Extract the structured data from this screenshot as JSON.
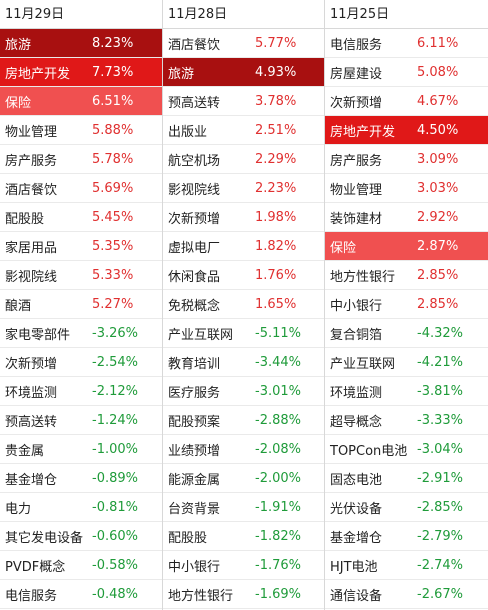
{
  "columns": [
    {
      "date": "11月29日",
      "rows": [
        {
          "name": "旅游",
          "pct": "8.23%",
          "dir": "up",
          "hl": "hl-dark"
        },
        {
          "name": "房地产开发",
          "pct": "7.73%",
          "dir": "up",
          "hl": "hl-red"
        },
        {
          "name": "保险",
          "pct": "6.51%",
          "dir": "up",
          "hl": "hl-pink"
        },
        {
          "name": "物业管理",
          "pct": "5.88%",
          "dir": "up",
          "hl": ""
        },
        {
          "name": "房产服务",
          "pct": "5.78%",
          "dir": "up",
          "hl": ""
        },
        {
          "name": "酒店餐饮",
          "pct": "5.69%",
          "dir": "up",
          "hl": ""
        },
        {
          "name": "配股股",
          "pct": "5.45%",
          "dir": "up",
          "hl": ""
        },
        {
          "name": "家居用品",
          "pct": "5.35%",
          "dir": "up",
          "hl": ""
        },
        {
          "name": "影视院线",
          "pct": "5.33%",
          "dir": "up",
          "hl": ""
        },
        {
          "name": "酿酒",
          "pct": "5.27%",
          "dir": "up",
          "hl": ""
        },
        {
          "name": "家电零部件",
          "pct": "-3.26%",
          "dir": "down",
          "hl": ""
        },
        {
          "name": "次新预增",
          "pct": "-2.54%",
          "dir": "down",
          "hl": ""
        },
        {
          "name": "环境监测",
          "pct": "-2.12%",
          "dir": "down",
          "hl": ""
        },
        {
          "name": "预高送转",
          "pct": "-1.24%",
          "dir": "down",
          "hl": ""
        },
        {
          "name": "贵金属",
          "pct": "-1.00%",
          "dir": "down",
          "hl": ""
        },
        {
          "name": "基金增仓",
          "pct": "-0.89%",
          "dir": "down",
          "hl": ""
        },
        {
          "name": "电力",
          "pct": "-0.81%",
          "dir": "down",
          "hl": ""
        },
        {
          "name": "其它发电设备",
          "pct": "-0.60%",
          "dir": "down",
          "hl": ""
        },
        {
          "name": "PVDF概念",
          "pct": "-0.58%",
          "dir": "down",
          "hl": ""
        },
        {
          "name": "电信服务",
          "pct": "-0.48%",
          "dir": "down",
          "hl": ""
        }
      ]
    },
    {
      "date": "11月28日",
      "rows": [
        {
          "name": "酒店餐饮",
          "pct": "5.77%",
          "dir": "up",
          "hl": ""
        },
        {
          "name": "旅游",
          "pct": "4.93%",
          "dir": "up",
          "hl": "hl-dark"
        },
        {
          "name": "预高送转",
          "pct": "3.78%",
          "dir": "up",
          "hl": ""
        },
        {
          "name": "出版业",
          "pct": "2.51%",
          "dir": "up",
          "hl": ""
        },
        {
          "name": "航空机场",
          "pct": "2.29%",
          "dir": "up",
          "hl": ""
        },
        {
          "name": "影视院线",
          "pct": "2.23%",
          "dir": "up",
          "hl": ""
        },
        {
          "name": "次新预增",
          "pct": "1.98%",
          "dir": "up",
          "hl": ""
        },
        {
          "name": "虚拟电厂",
          "pct": "1.82%",
          "dir": "up",
          "hl": ""
        },
        {
          "name": "休闲食品",
          "pct": "1.76%",
          "dir": "up",
          "hl": ""
        },
        {
          "name": "免税概念",
          "pct": "1.65%",
          "dir": "up",
          "hl": ""
        },
        {
          "name": "产业互联网",
          "pct": "-5.11%",
          "dir": "down",
          "hl": ""
        },
        {
          "name": "教育培训",
          "pct": "-3.44%",
          "dir": "down",
          "hl": ""
        },
        {
          "name": "医疗服务",
          "pct": "-3.01%",
          "dir": "down",
          "hl": ""
        },
        {
          "name": "配股预案",
          "pct": "-2.88%",
          "dir": "down",
          "hl": ""
        },
        {
          "name": "业绩预增",
          "pct": "-2.08%",
          "dir": "down",
          "hl": ""
        },
        {
          "name": "能源金属",
          "pct": "-2.00%",
          "dir": "down",
          "hl": ""
        },
        {
          "name": "台资背景",
          "pct": "-1.91%",
          "dir": "down",
          "hl": ""
        },
        {
          "name": "配股股",
          "pct": "-1.82%",
          "dir": "down",
          "hl": ""
        },
        {
          "name": "中小银行",
          "pct": "-1.76%",
          "dir": "down",
          "hl": ""
        },
        {
          "name": "地方性银行",
          "pct": "-1.69%",
          "dir": "down",
          "hl": ""
        }
      ]
    },
    {
      "date": "11月25日",
      "rows": [
        {
          "name": "电信服务",
          "pct": "6.11%",
          "dir": "up",
          "hl": ""
        },
        {
          "name": "房屋建设",
          "pct": "5.08%",
          "dir": "up",
          "hl": ""
        },
        {
          "name": "次新预增",
          "pct": "4.67%",
          "dir": "up",
          "hl": ""
        },
        {
          "name": "房地产开发",
          "pct": "4.50%",
          "dir": "up",
          "hl": "hl-red"
        },
        {
          "name": "房产服务",
          "pct": "3.09%",
          "dir": "up",
          "hl": ""
        },
        {
          "name": "物业管理",
          "pct": "3.03%",
          "dir": "up",
          "hl": ""
        },
        {
          "name": "装饰建材",
          "pct": "2.92%",
          "dir": "up",
          "hl": ""
        },
        {
          "name": "保险",
          "pct": "2.87%",
          "dir": "up",
          "hl": "hl-pink"
        },
        {
          "name": "地方性银行",
          "pct": "2.85%",
          "dir": "up",
          "hl": ""
        },
        {
          "name": "中小银行",
          "pct": "2.85%",
          "dir": "up",
          "hl": ""
        },
        {
          "name": "复合铜箔",
          "pct": "-4.32%",
          "dir": "down",
          "hl": ""
        },
        {
          "name": "产业互联网",
          "pct": "-4.21%",
          "dir": "down",
          "hl": ""
        },
        {
          "name": "环境监测",
          "pct": "-3.81%",
          "dir": "down",
          "hl": ""
        },
        {
          "name": "超导概念",
          "pct": "-3.33%",
          "dir": "down",
          "hl": ""
        },
        {
          "name": "TOPCon电池",
          "pct": "-3.04%",
          "dir": "down",
          "hl": ""
        },
        {
          "name": "固态电池",
          "pct": "-2.91%",
          "dir": "down",
          "hl": ""
        },
        {
          "name": "光伏设备",
          "pct": "-2.85%",
          "dir": "down",
          "hl": ""
        },
        {
          "name": "基金增仓",
          "pct": "-2.79%",
          "dir": "down",
          "hl": ""
        },
        {
          "name": "HJT电池",
          "pct": "-2.74%",
          "dir": "down",
          "hl": ""
        },
        {
          "name": "通信设备",
          "pct": "-2.67%",
          "dir": "down",
          "hl": ""
        }
      ]
    }
  ]
}
